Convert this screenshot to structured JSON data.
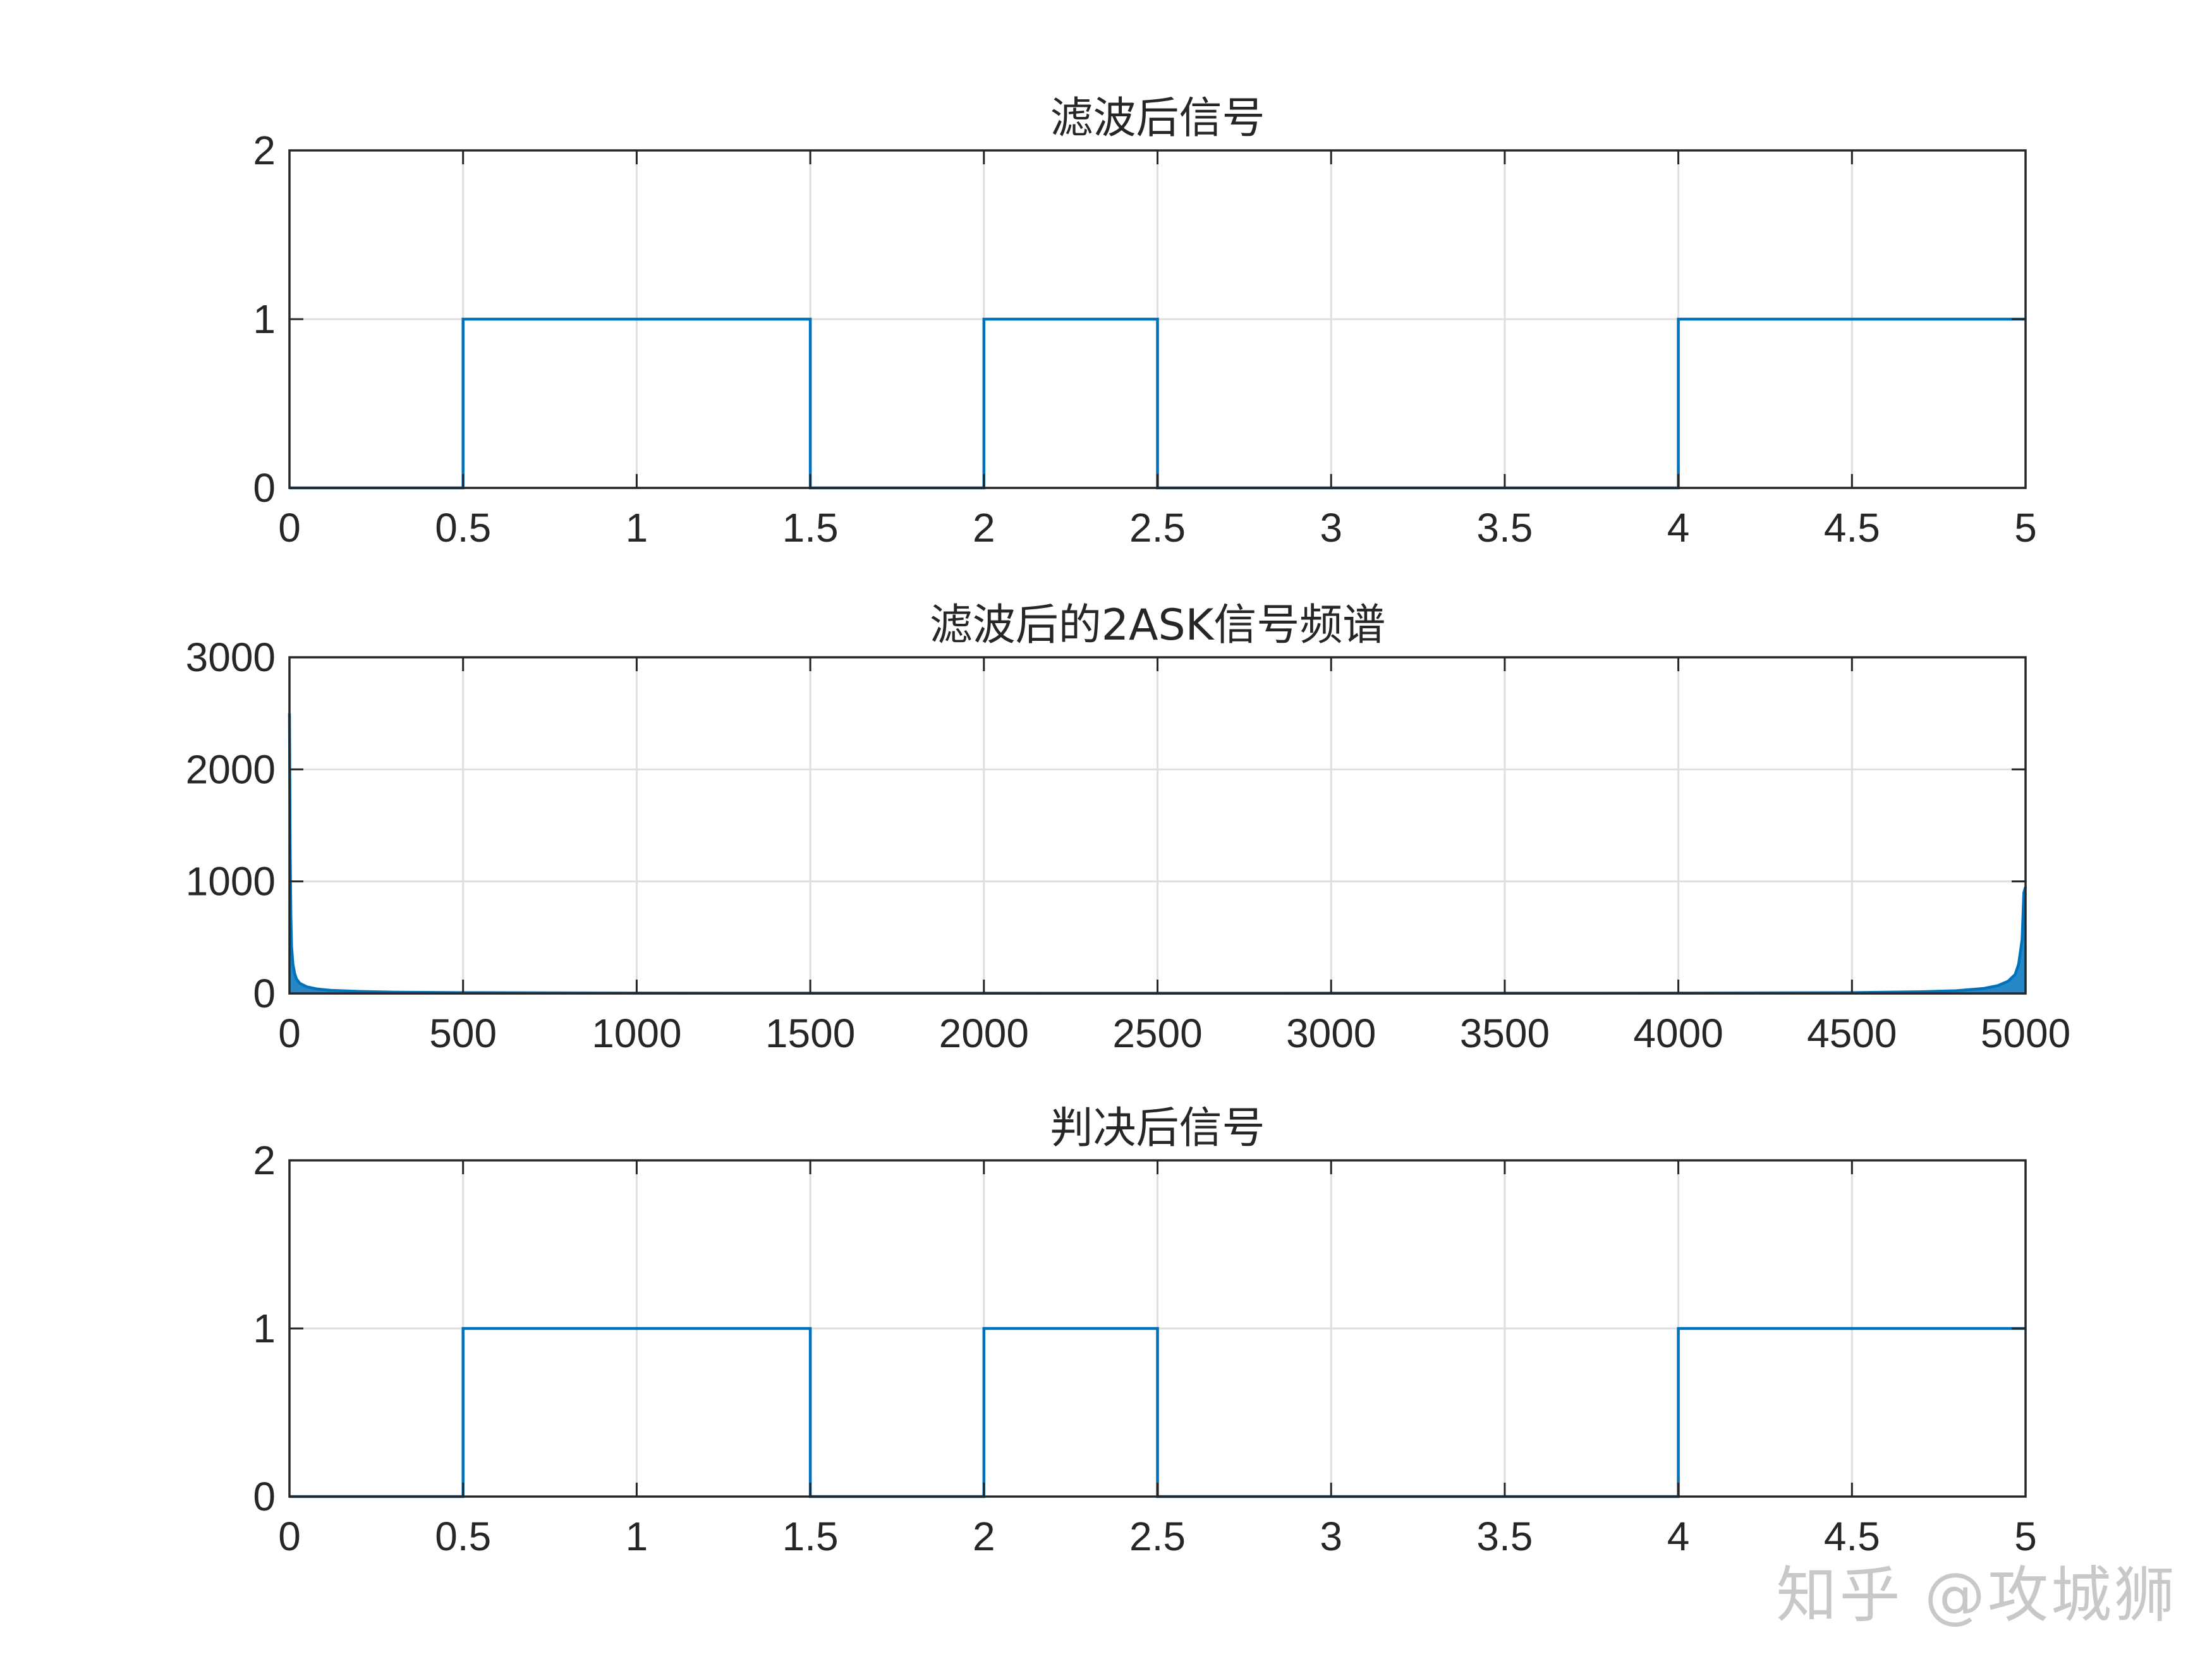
{
  "chart_data": [
    {
      "type": "line",
      "title": "滤波后信号",
      "xlim": [
        0,
        5
      ],
      "ylim": [
        0,
        2
      ],
      "xticks": [
        "0",
        "0.5",
        "1",
        "1.5",
        "2",
        "2.5",
        "3",
        "3.5",
        "4",
        "4.5",
        "5"
      ],
      "yticks": [
        "0",
        "1",
        "2"
      ],
      "grid": true,
      "series": [
        {
          "color": "#0072BD",
          "x": [
            0,
            0.5,
            0.5,
            1.5,
            1.5,
            2.0,
            2.0,
            2.5,
            2.5,
            4.0,
            4.0,
            5.0
          ],
          "y": [
            0,
            0,
            1,
            1,
            0,
            0,
            1,
            1,
            0,
            0,
            1,
            1
          ]
        }
      ]
    },
    {
      "type": "line",
      "title": "滤波后的2ASK信号频谱",
      "xlim": [
        0,
        5000
      ],
      "ylim": [
        0,
        3000
      ],
      "xticks": [
        "0",
        "500",
        "1000",
        "1500",
        "2000",
        "2500",
        "3000",
        "3500",
        "4000",
        "4500",
        "5000"
      ],
      "yticks": [
        "0",
        "1000",
        "2000",
        "3000"
      ],
      "grid": true,
      "series": [
        {
          "color": "#0072BD",
          "x": [
            0,
            2,
            4,
            6,
            10,
            15,
            20,
            30,
            50,
            80,
            120,
            200,
            300,
            500,
            1000,
            2500,
            4000,
            4500,
            4700,
            4800,
            4880,
            4920,
            4950,
            4970,
            4980,
            4990,
            4995,
            5000
          ],
          "y": [
            2500,
            1300,
            700,
            420,
            260,
            180,
            130,
            90,
            60,
            40,
            28,
            18,
            12,
            8,
            4,
            3,
            4,
            8,
            15,
            25,
            45,
            70,
            110,
            170,
            260,
            480,
            900,
            950
          ]
        }
      ]
    },
    {
      "type": "line",
      "title": "判决后信号",
      "xlim": [
        0,
        5
      ],
      "ylim": [
        0,
        2
      ],
      "xticks": [
        "0",
        "0.5",
        "1",
        "1.5",
        "2",
        "2.5",
        "3",
        "3.5",
        "4",
        "4.5",
        "5"
      ],
      "yticks": [
        "0",
        "1",
        "2"
      ],
      "grid": true,
      "series": [
        {
          "color": "#0072BD",
          "x": [
            0,
            0.5,
            0.5,
            1.5,
            1.5,
            2.0,
            2.0,
            2.5,
            2.5,
            4.0,
            4.0,
            5.0
          ],
          "y": [
            0,
            0,
            1,
            1,
            0,
            0,
            1,
            1,
            0,
            0,
            1,
            1
          ]
        }
      ]
    }
  ],
  "watermark": "知乎 @攻城狮"
}
